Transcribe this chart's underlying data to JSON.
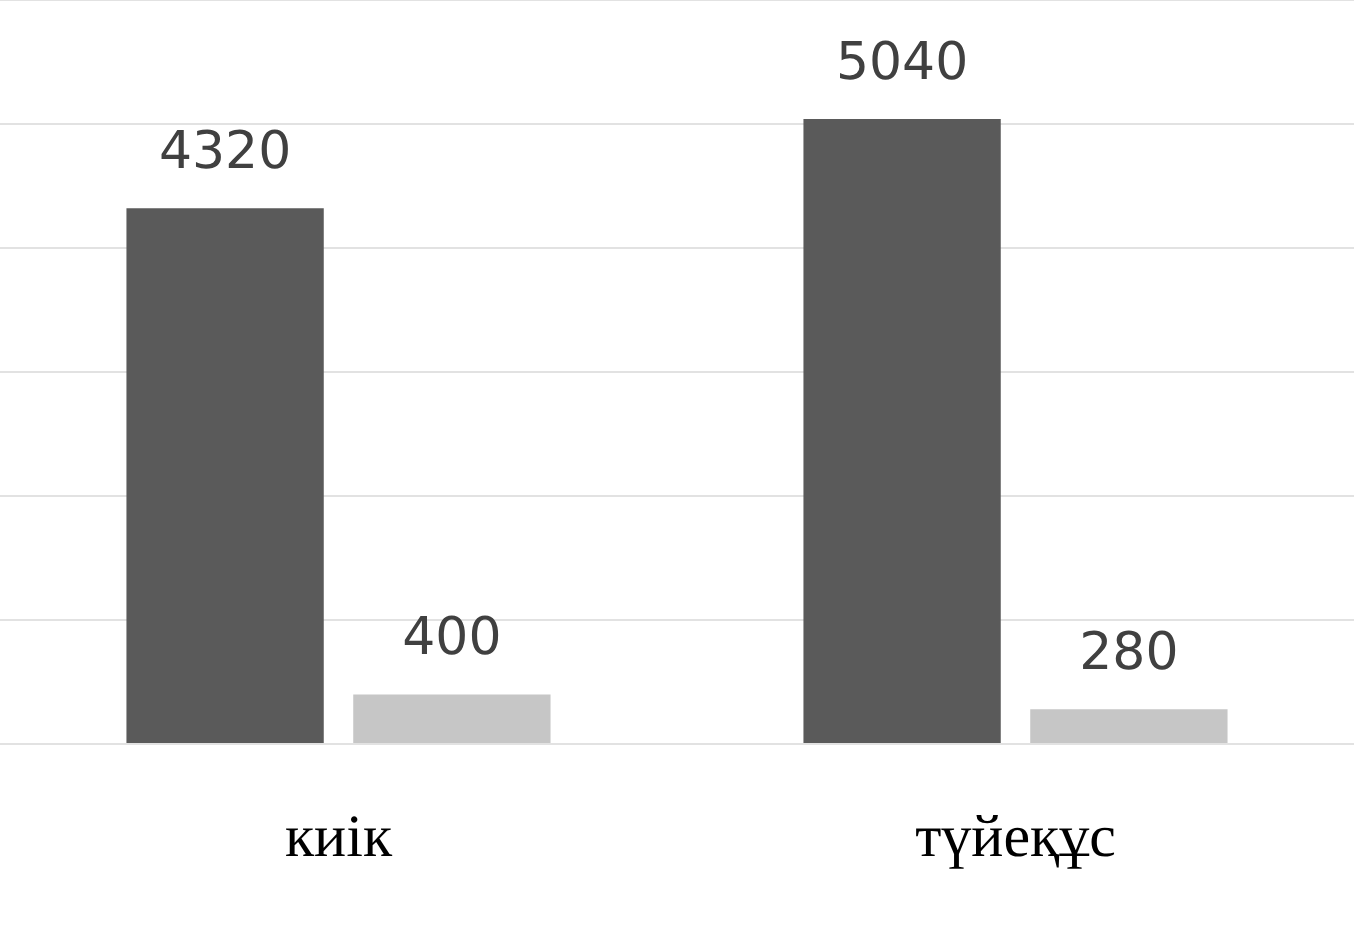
{
  "chart_data": {
    "type": "bar",
    "categories": [
      "киік",
      "түйеқұс"
    ],
    "series": [
      {
        "color": "#5a5a5a",
        "values": [
          4320,
          5040
        ]
      },
      {
        "color": "#c6c6c6",
        "values": [
          400,
          280
        ]
      }
    ],
    "ylim": [
      0,
      6000
    ],
    "yticks": [
      0,
      1000,
      2000,
      3000,
      4000,
      5000,
      6000
    ],
    "grid": "y",
    "tick_labels": "x",
    "data_labels": true,
    "legend": false
  }
}
